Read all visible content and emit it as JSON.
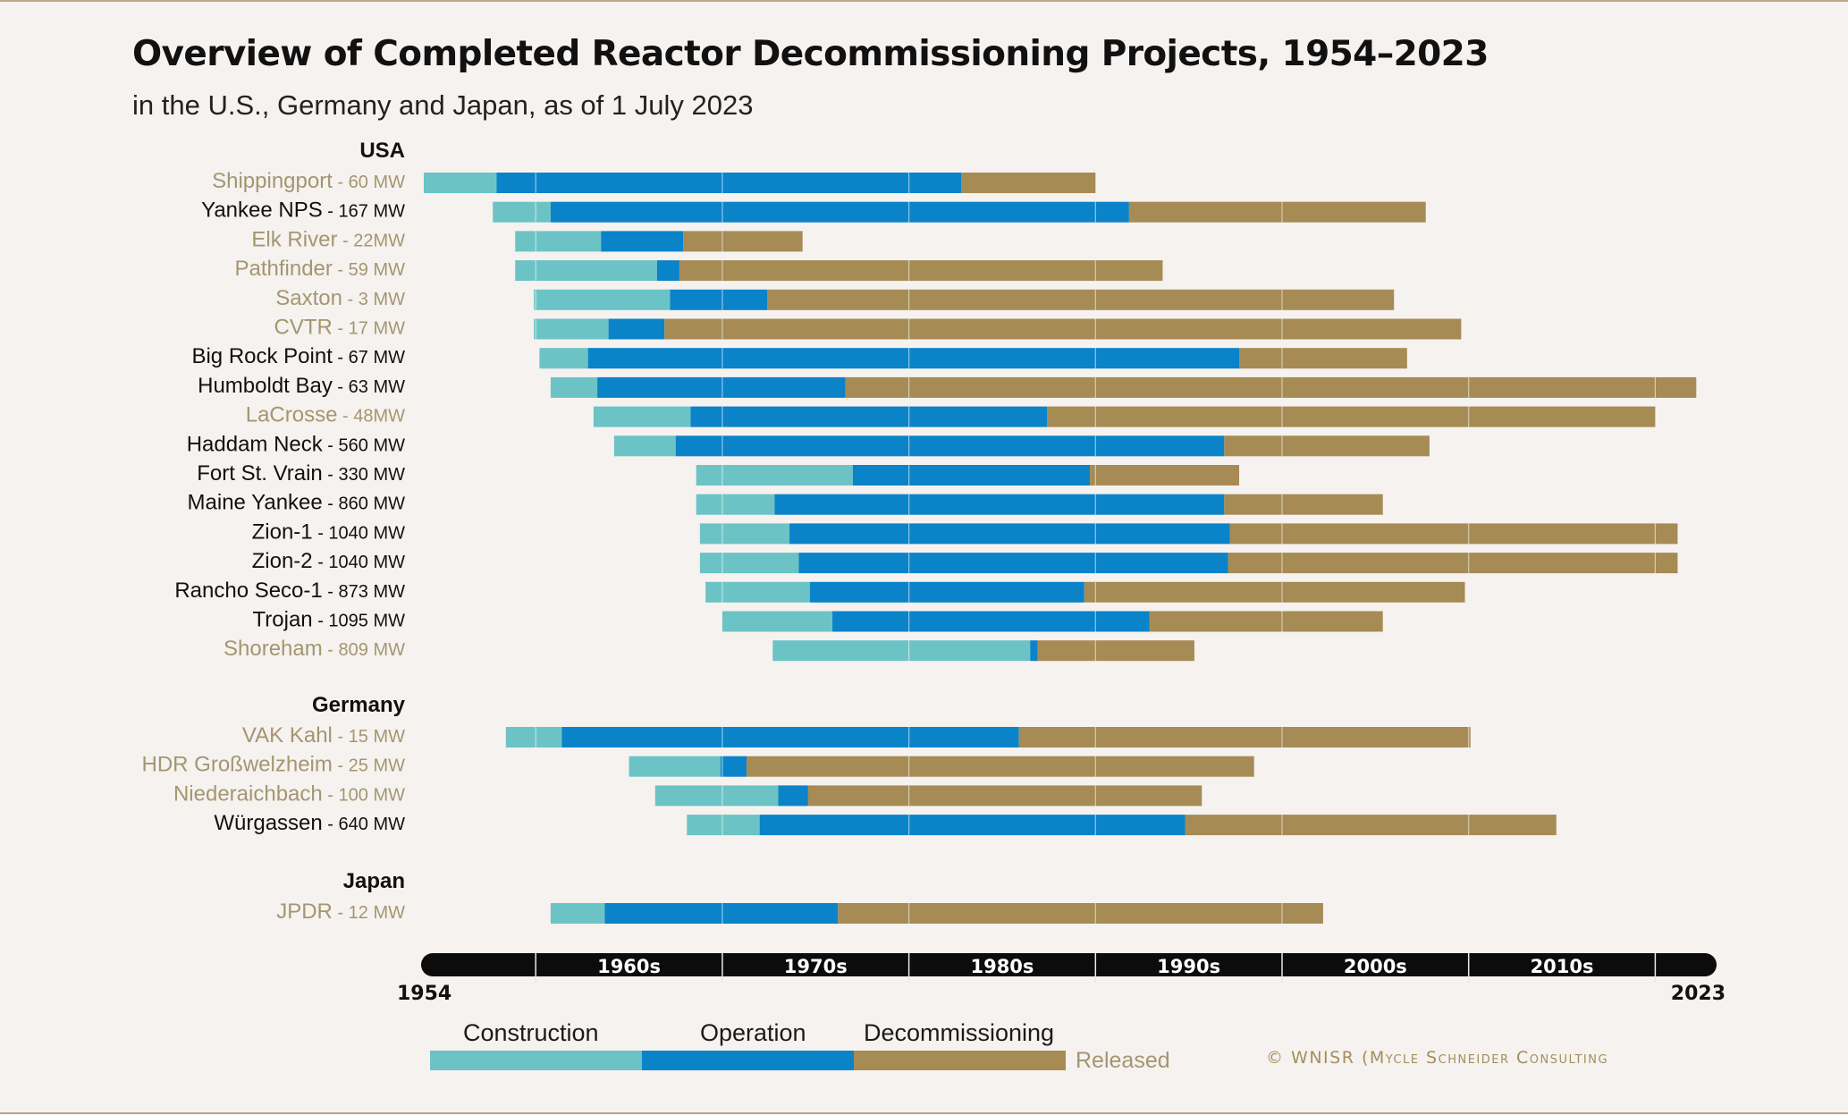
{
  "title": "Overview of Completed Reactor Decommissioning Projects, 1954–2023",
  "subtitle": "in the U.S., Germany and Japan, as of 1 July 2023",
  "copyright": "© WNISR (Mycle Schneider Consulting",
  "colors": {
    "construction": "#6cc3c5",
    "operation": "#0a83c9",
    "decommissioning": "#a68b55",
    "label_released": "#a39670",
    "label_normal": "#111111",
    "axis_band": "#0c0c0c",
    "background": "#f6f2f0"
  },
  "chart_data": {
    "type": "bar",
    "subtype": "horizontal-stacked-timeline",
    "x_range": [
      1954,
      2023
    ],
    "axis_start_label": "1954",
    "axis_end_label": "2023",
    "decade_labels": [
      "1960s",
      "1970s",
      "1980s",
      "1990s",
      "2000s",
      "2010s"
    ],
    "decade_ticks": [
      1960,
      1970,
      1980,
      1990,
      2000,
      2010,
      2020
    ],
    "grid": true,
    "legend": {
      "construction": "Construction",
      "operation": "Operation",
      "decommissioning": "Decommissioning",
      "released": "Released",
      "placement": "bottom"
    },
    "groups": [
      {
        "name": "USA",
        "reactors": [
          {
            "name": "Shippingport",
            "capacity": " - 60 MW",
            "released": true,
            "construction_start": 1954.0,
            "operation_start": 1957.9,
            "decommissioning_start": 1982.8,
            "end": 1990.0
          },
          {
            "name": "Yankee NPS",
            "capacity": " - 167 MW",
            "released": false,
            "construction_start": 1957.7,
            "operation_start": 1960.8,
            "decommissioning_start": 1991.8,
            "end": 2007.7
          },
          {
            "name": "Elk River",
            "capacity": " - 22MW",
            "released": true,
            "construction_start": 1958.9,
            "operation_start": 1963.5,
            "decommissioning_start": 1967.9,
            "end": 1974.3
          },
          {
            "name": "Pathfinder",
            "capacity": " - 59 MW",
            "released": true,
            "construction_start": 1958.9,
            "operation_start": 1966.5,
            "decommissioning_start": 1967.7,
            "end": 1993.6
          },
          {
            "name": "Saxton",
            "capacity": " - 3 MW",
            "released": true,
            "construction_start": 1959.9,
            "operation_start": 1967.2,
            "decommissioning_start": 1972.4,
            "end": 2006.0
          },
          {
            "name": "CVTR",
            "capacity": " - 17 MW",
            "released": true,
            "construction_start": 1959.9,
            "operation_start": 1963.9,
            "decommissioning_start": 1966.9,
            "end": 2009.6
          },
          {
            "name": "Big Rock Point",
            "capacity": " - 67 MW",
            "released": false,
            "construction_start": 1960.2,
            "operation_start": 1962.8,
            "decommissioning_start": 1997.7,
            "end": 2006.7
          },
          {
            "name": "Humboldt Bay",
            "capacity": " - 63 MW",
            "released": false,
            "construction_start": 1960.8,
            "operation_start": 1963.3,
            "decommissioning_start": 1976.6,
            "end": 2022.2
          },
          {
            "name": "LaCrosse",
            "capacity": " - 48MW",
            "released": true,
            "construction_start": 1963.1,
            "operation_start": 1968.3,
            "decommissioning_start": 1987.4,
            "end": 2020.0
          },
          {
            "name": "Haddam Neck",
            "capacity": " - 560 MW",
            "released": false,
            "construction_start": 1964.2,
            "operation_start": 1967.5,
            "decommissioning_start": 1996.9,
            "end": 2007.9
          },
          {
            "name": "Fort St. Vrain",
            "capacity": " - 330 MW",
            "released": false,
            "construction_start": 1968.6,
            "operation_start": 1977.0,
            "decommissioning_start": 1989.7,
            "end": 1997.7
          },
          {
            "name": "Maine Yankee",
            "capacity": " - 860 MW",
            "released": false,
            "construction_start": 1968.6,
            "operation_start": 1972.8,
            "decommissioning_start": 1996.9,
            "end": 2005.4
          },
          {
            "name": "Zion-1",
            "capacity": " - 1040 MW",
            "released": false,
            "construction_start": 1968.8,
            "operation_start": 1973.6,
            "decommissioning_start": 1997.2,
            "end": 2021.2
          },
          {
            "name": "Zion-2",
            "capacity": " - 1040 MW",
            "released": false,
            "construction_start": 1968.8,
            "operation_start": 1974.1,
            "decommissioning_start": 1997.1,
            "end": 2021.2
          },
          {
            "name": "Rancho Seco-1",
            "capacity": " - 873 MW",
            "released": false,
            "construction_start": 1969.1,
            "operation_start": 1974.7,
            "decommissioning_start": 1989.4,
            "end": 2009.8
          },
          {
            "name": "Trojan",
            "capacity": " - 1095 MW",
            "released": false,
            "construction_start": 1970.0,
            "operation_start": 1975.9,
            "decommissioning_start": 1992.9,
            "end": 2005.4
          },
          {
            "name": "Shoreham",
            "capacity": " - 809 MW",
            "released": true,
            "construction_start": 1972.7,
            "operation_start": 1986.5,
            "decommissioning_start": 1986.9,
            "end": 1995.3
          }
        ]
      },
      {
        "name": "Germany",
        "reactors": [
          {
            "name": "VAK Kahl",
            "capacity": " - 15 MW",
            "released": true,
            "construction_start": 1958.4,
            "operation_start": 1961.4,
            "decommissioning_start": 1985.9,
            "end": 2010.1
          },
          {
            "name": "HDR Großwelzheim",
            "capacity": " - 25 MW",
            "released": true,
            "construction_start": 1965.0,
            "operation_start": 1969.9,
            "decommissioning_start": 1971.3,
            "end": 1998.5
          },
          {
            "name": "Niederaichbach",
            "capacity": " - 100 MW",
            "released": true,
            "construction_start": 1966.4,
            "operation_start": 1973.0,
            "decommissioning_start": 1974.6,
            "end": 1995.7
          },
          {
            "name": "Würgassen",
            "capacity": " - 640 MW",
            "released": false,
            "construction_start": 1968.1,
            "operation_start": 1972.0,
            "decommissioning_start": 1994.8,
            "end": 2014.7
          }
        ]
      },
      {
        "name": "Japan",
        "reactors": [
          {
            "name": "JPDR",
            "capacity": " - 12 MW",
            "released": true,
            "construction_start": 1960.8,
            "operation_start": 1963.7,
            "decommissioning_start": 1976.2,
            "end": 2002.2
          }
        ]
      }
    ]
  }
}
